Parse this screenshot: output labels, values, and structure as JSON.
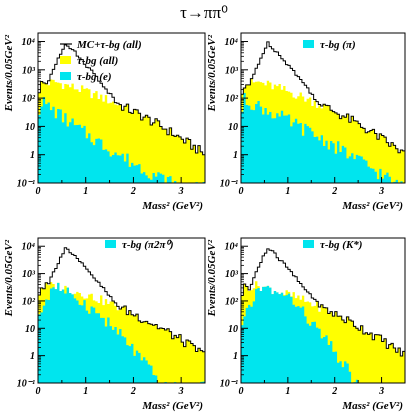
{
  "figure_title": "τ→ππ⁰",
  "colors": {
    "total": "#000000",
    "tau_bg_all": "#ffff00",
    "subset": "#00e5ee"
  },
  "chart_data": [
    {
      "type": "histogram",
      "panel": "top-left",
      "ylabel": "Events/0.05GeV²",
      "xlabel": "Mass² (GeV²)",
      "xlim": [
        0,
        3.5
      ],
      "ylim": [
        0.1,
        20000
      ],
      "yscale": "log",
      "xticks": [
        "0",
        "1",
        "2",
        "3"
      ],
      "yticks": [
        "10⁻¹",
        "1",
        "10",
        "10²",
        "10³",
        "10⁴"
      ],
      "legend": [
        "MC+τ-bg (all)",
        "τ-bg (all)",
        "τ-bg (e)"
      ],
      "shape": "e",
      "bin_width": 0.05
    },
    {
      "type": "histogram",
      "panel": "top-right",
      "ylabel": "Events/0.05GeV²",
      "xlabel": "Mass² (GeV²)",
      "xlim": [
        0,
        3.5
      ],
      "ylim": [
        0.1,
        20000
      ],
      "yscale": "log",
      "xticks": [
        "0",
        "1",
        "2",
        "3"
      ],
      "yticks": [
        "10⁻¹",
        "1",
        "10",
        "10²",
        "10³",
        "10⁴"
      ],
      "legend": [
        "τ-bg (π)"
      ],
      "shape": "pi",
      "bin_width": 0.05
    },
    {
      "type": "histogram",
      "panel": "bottom-left",
      "ylabel": "Events/0.05GeV²",
      "xlabel": "Mass² (GeV²)",
      "xlim": [
        0,
        3.5
      ],
      "ylim": [
        0.1,
        20000
      ],
      "yscale": "log",
      "xticks": [
        "0",
        "1",
        "2",
        "3"
      ],
      "yticks": [
        "10⁻¹",
        "1",
        "10",
        "10²",
        "10³",
        "10⁴"
      ],
      "legend": [
        "τ-bg (π2π⁰)"
      ],
      "shape": "pi2pi0",
      "bin_width": 0.05
    },
    {
      "type": "histogram",
      "panel": "bottom-right",
      "ylabel": "Events/0.05GeV²",
      "xlabel": "Mass² (GeV²)",
      "xlim": [
        0,
        3.5
      ],
      "ylim": [
        0.1,
        20000
      ],
      "yscale": "log",
      "xticks": [
        "0",
        "1",
        "2",
        "3"
      ],
      "yticks": [
        "10⁻¹",
        "1",
        "10",
        "10²",
        "10³",
        "10⁴"
      ],
      "legend": [
        "τ-bg (K*)"
      ],
      "shape": "kstar",
      "bin_width": 0.05
    }
  ]
}
